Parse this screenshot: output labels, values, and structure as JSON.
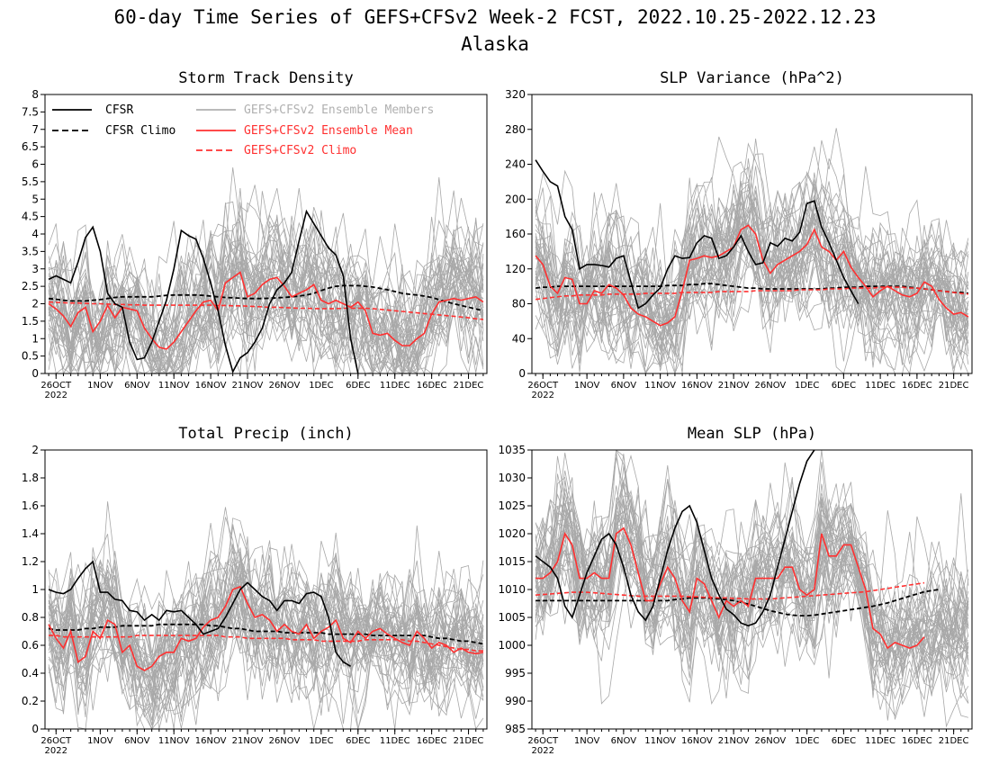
{
  "title": "60-day Time Series of GEFS+CFSv2 Week-2 FCST, 2022.10.25-2022.12.23",
  "subtitle": "Alaska",
  "x_tick_labels": [
    "26OCT",
    "1NOV",
    "6NOV",
    "11NOV",
    "16NOV",
    "21NOV",
    "26NOV",
    "1DEC",
    "6DEC",
    "11DEC",
    "16DEC",
    "21DEC"
  ],
  "x_tick_year": "2022",
  "legend": [
    {
      "label": "CFSR",
      "color": "#000000",
      "dash": "solid"
    },
    {
      "label": "CFSR Climo",
      "color": "#000000",
      "dash": "dashed"
    },
    {
      "label": "GEFS+CFSv2 Ensemble Members",
      "color": "#b0b0b0",
      "dash": "solid"
    },
    {
      "label": "GEFS+CFSv2 Ensemble Mean",
      "color": "#ff3030",
      "dash": "solid"
    },
    {
      "label": "GEFS+CFSv2 Climo",
      "color": "#ff3030",
      "dash": "dashed"
    }
  ],
  "colors": {
    "cfsr": "#000000",
    "members": "#a8a8a8",
    "mean": "#ff3030"
  },
  "chart_data": [
    {
      "type": "line",
      "title": "Storm Track Density",
      "ylim": [
        0,
        8
      ],
      "yticks": [
        0,
        0.5,
        1,
        1.5,
        2,
        2.5,
        3,
        3.5,
        4,
        4.5,
        5,
        5.5,
        6,
        6.5,
        7,
        7.5,
        8
      ],
      "ytick_labels": [
        "0",
        "0.5",
        "1",
        "1.5",
        "2",
        "2.5",
        "3",
        "3.5",
        "4",
        "4.5",
        "5",
        "5.5",
        "6",
        "6.5",
        "7",
        "7.5",
        "8"
      ],
      "series": [
        {
          "key": "cfsr",
          "values": [
            2.7,
            2.8,
            2.7,
            2.6,
            3.2,
            3.9,
            4.2,
            3.5,
            2.3,
            2.0,
            1.9,
            0.9,
            0.4,
            0.45,
            0.9,
            1.5,
            2.1,
            3.0,
            4.1,
            3.95,
            3.85,
            3.3,
            2.6,
            1.8,
            0.8,
            0.05,
            0.45,
            0.6,
            0.9,
            1.3,
            2.0,
            2.4,
            2.6,
            2.9,
            3.8,
            4.65,
            4.3,
            3.95,
            3.6,
            3.4,
            2.8,
            1.0,
            0.0
          ]
        },
        {
          "key": "cfsr_climo",
          "values": [
            2.15,
            2.13,
            2.1,
            2.08,
            2.08,
            2.08,
            2.1,
            2.12,
            2.15,
            2.18,
            2.2,
            2.2,
            2.2,
            2.2,
            2.2,
            2.22,
            2.24,
            2.25,
            2.25,
            2.25,
            2.25,
            2.24,
            2.22,
            2.2,
            2.18,
            2.17,
            2.16,
            2.15,
            2.15,
            2.15,
            2.16,
            2.17,
            2.18,
            2.2,
            2.22,
            2.25,
            2.3,
            2.38,
            2.45,
            2.5,
            2.52,
            2.52,
            2.52,
            2.5,
            2.48,
            2.44,
            2.4,
            2.35,
            2.3,
            2.27,
            2.25,
            2.22,
            2.18,
            2.12,
            2.06,
            2.0,
            1.95,
            1.9,
            1.85,
            1.8
          ]
        },
        {
          "key": "mean",
          "values": [
            2.0,
            1.85,
            1.65,
            1.35,
            1.75,
            1.9,
            1.2,
            1.5,
            1.95,
            1.6,
            1.9,
            1.85,
            1.8,
            1.3,
            1.0,
            0.75,
            0.7,
            0.9,
            1.2,
            1.5,
            1.8,
            2.05,
            2.1,
            1.8,
            2.6,
            2.75,
            2.9,
            2.2,
            2.3,
            2.55,
            2.7,
            2.75,
            2.5,
            2.2,
            2.3,
            2.4,
            2.55,
            2.1,
            2.0,
            2.1,
            2.0,
            1.9,
            2.05,
            1.8,
            1.15,
            1.1,
            1.15,
            0.95,
            0.8,
            0.8,
            1.0,
            1.15,
            1.7,
            2.05,
            2.1,
            2.15,
            2.1,
            2.15,
            2.2,
            2.05
          ]
        },
        {
          "key": "climo",
          "values": [
            2.05,
            2.04,
            2.03,
            2.02,
            2.02,
            2.01,
            2.0,
            2.0,
            1.99,
            1.98,
            1.98,
            1.97,
            1.97,
            1.96,
            1.96,
            1.96,
            1.96,
            1.96,
            1.96,
            1.96,
            1.96,
            1.96,
            1.96,
            1.95,
            1.95,
            1.94,
            1.94,
            1.93,
            1.92,
            1.91,
            1.9,
            1.9,
            1.89,
            1.88,
            1.87,
            1.87,
            1.86,
            1.86,
            1.86,
            1.86,
            1.87,
            1.87,
            1.87,
            1.87,
            1.86,
            1.84,
            1.82,
            1.8,
            1.78,
            1.76,
            1.74,
            1.72,
            1.7,
            1.68,
            1.66,
            1.64,
            1.62,
            1.6,
            1.57,
            1.55
          ]
        }
      ]
    },
    {
      "type": "line",
      "title": "SLP Variance (hPa^2)",
      "ylim": [
        0,
        320
      ],
      "yticks": [
        0,
        40,
        80,
        120,
        160,
        200,
        240,
        280,
        320
      ],
      "ytick_labels": [
        "0",
        "40",
        "80",
        "120",
        "160",
        "200",
        "240",
        "280",
        "320"
      ],
      "series": [
        {
          "key": "cfsr",
          "values": [
            245,
            232,
            220,
            215,
            180,
            165,
            120,
            125,
            125,
            124,
            122,
            132,
            135,
            105,
            75,
            80,
            90,
            98,
            120,
            135,
            132,
            133,
            150,
            158,
            155,
            132,
            135,
            145,
            158,
            140,
            125,
            127,
            150,
            146,
            155,
            152,
            162,
            195,
            198,
            168,
            150,
            130,
            110,
            95,
            80
          ]
        },
        {
          "key": "cfsr_climo",
          "values": [
            98,
            99,
            99,
            100,
            100,
            100,
            100,
            100,
            100,
            100,
            100,
            100,
            100,
            100,
            100,
            100,
            100,
            100,
            101,
            101,
            101,
            102,
            102,
            103,
            103,
            102,
            101,
            100,
            99,
            98,
            98,
            97,
            97,
            97,
            97,
            97,
            97,
            97,
            97,
            97,
            98,
            98,
            99,
            99,
            99,
            100,
            100,
            100,
            100,
            100,
            100,
            99,
            98,
            97,
            96,
            95,
            94,
            93,
            93,
            92
          ]
        },
        {
          "key": "mean",
          "values": [
            135,
            125,
            100,
            92,
            110,
            108,
            80,
            80,
            95,
            92,
            102,
            98,
            90,
            75,
            68,
            65,
            60,
            55,
            58,
            65,
            95,
            130,
            132,
            135,
            133,
            135,
            140,
            145,
            165,
            170,
            160,
            130,
            115,
            125,
            130,
            135,
            140,
            148,
            165,
            145,
            140,
            130,
            140,
            122,
            110,
            100,
            88,
            95,
            100,
            95,
            90,
            88,
            92,
            105,
            100,
            85,
            75,
            68,
            70,
            65
          ]
        },
        {
          "key": "climo",
          "values": [
            85,
            86,
            87,
            88,
            89,
            89,
            90,
            90,
            90,
            90,
            91,
            91,
            91,
            91,
            91,
            92,
            92,
            92,
            92,
            92,
            93,
            93,
            93,
            93,
            93,
            94,
            94,
            94,
            94,
            94,
            95,
            95,
            95,
            95,
            95,
            95,
            96,
            96,
            96,
            96,
            97,
            97,
            97,
            98,
            98,
            98,
            98,
            99,
            99,
            99,
            99,
            98,
            98,
            97,
            96,
            95,
            94,
            93,
            92,
            91
          ]
        }
      ]
    },
    {
      "type": "line",
      "title": "Total Precip (inch)",
      "ylim": [
        0,
        2
      ],
      "yticks": [
        0,
        0.2,
        0.4,
        0.6,
        0.8,
        1,
        1.2,
        1.4,
        1.6,
        1.8,
        2
      ],
      "ytick_labels": [
        "0",
        "0.2",
        "0.4",
        "0.6",
        "0.8",
        "1",
        "1.2",
        "1.4",
        "1.6",
        "1.8",
        "2"
      ],
      "series": [
        {
          "key": "cfsr",
          "values": [
            1.0,
            0.98,
            0.97,
            1.0,
            1.08,
            1.15,
            1.2,
            0.98,
            0.98,
            0.93,
            0.92,
            0.85,
            0.84,
            0.78,
            0.82,
            0.78,
            0.85,
            0.84,
            0.85,
            0.8,
            0.75,
            0.68,
            0.7,
            0.72,
            0.8,
            0.9,
            1.0,
            1.05,
            1.0,
            0.95,
            0.92,
            0.85,
            0.92,
            0.92,
            0.9,
            0.97,
            0.98,
            0.95,
            0.8,
            0.55,
            0.48,
            0.45
          ]
        },
        {
          "key": "cfsr_climo",
          "values": [
            0.72,
            0.71,
            0.71,
            0.71,
            0.71,
            0.72,
            0.72,
            0.73,
            0.73,
            0.73,
            0.74,
            0.74,
            0.74,
            0.74,
            0.74,
            0.75,
            0.75,
            0.75,
            0.75,
            0.75,
            0.75,
            0.75,
            0.74,
            0.74,
            0.73,
            0.72,
            0.72,
            0.71,
            0.7,
            0.7,
            0.7,
            0.7,
            0.69,
            0.69,
            0.69,
            0.69,
            0.69,
            0.69,
            0.68,
            0.68,
            0.68,
            0.68,
            0.68,
            0.68,
            0.67,
            0.67,
            0.67,
            0.67,
            0.67,
            0.67,
            0.67,
            0.67,
            0.66,
            0.65,
            0.65,
            0.64,
            0.63,
            0.63,
            0.62,
            0.61
          ]
        },
        {
          "key": "mean",
          "values": [
            0.75,
            0.65,
            0.58,
            0.7,
            0.48,
            0.52,
            0.7,
            0.65,
            0.78,
            0.75,
            0.55,
            0.6,
            0.45,
            0.42,
            0.45,
            0.52,
            0.55,
            0.55,
            0.65,
            0.63,
            0.65,
            0.73,
            0.78,
            0.8,
            0.88,
            1.0,
            1.02,
            0.9,
            0.8,
            0.82,
            0.78,
            0.7,
            0.75,
            0.7,
            0.68,
            0.75,
            0.65,
            0.7,
            0.73,
            0.78,
            0.65,
            0.62,
            0.7,
            0.65,
            0.7,
            0.72,
            0.68,
            0.65,
            0.62,
            0.6,
            0.7,
            0.65,
            0.58,
            0.62,
            0.6,
            0.55,
            0.58,
            0.55,
            0.54,
            0.55
          ]
        },
        {
          "key": "climo",
          "values": [
            0.67,
            0.67,
            0.66,
            0.66,
            0.66,
            0.66,
            0.66,
            0.66,
            0.66,
            0.66,
            0.66,
            0.66,
            0.67,
            0.67,
            0.67,
            0.67,
            0.67,
            0.67,
            0.67,
            0.67,
            0.67,
            0.67,
            0.67,
            0.67,
            0.66,
            0.66,
            0.66,
            0.65,
            0.65,
            0.65,
            0.65,
            0.65,
            0.65,
            0.64,
            0.64,
            0.64,
            0.64,
            0.63,
            0.63,
            0.63,
            0.63,
            0.63,
            0.63,
            0.64,
            0.64,
            0.64,
            0.64,
            0.64,
            0.64,
            0.63,
            0.63,
            0.62,
            0.61,
            0.6,
            0.59,
            0.58,
            0.57,
            0.57,
            0.56,
            0.56
          ]
        }
      ]
    },
    {
      "type": "line",
      "title": "Mean SLP (hPa)",
      "ylim": [
        985,
        1035
      ],
      "yticks": [
        985,
        990,
        995,
        1000,
        1005,
        1010,
        1015,
        1020,
        1025,
        1030,
        1035
      ],
      "ytick_labels": [
        "985",
        "990",
        "995",
        "1000",
        "1005",
        "1010",
        "1015",
        "1020",
        "1025",
        "1030",
        "1035"
      ],
      "series": [
        {
          "key": "cfsr",
          "values": [
            1016,
            1015,
            1014,
            1012,
            1007,
            1005,
            1009,
            1013,
            1016,
            1019,
            1020,
            1018,
            1014,
            1009,
            1006,
            1004.5,
            1007,
            1012,
            1017,
            1021,
            1024,
            1025,
            1022,
            1017,
            1012,
            1009,
            1006.5,
            1005.5,
            1004,
            1003.5,
            1004,
            1006,
            1009,
            1014,
            1019,
            1024,
            1029,
            1033,
            1036
          ]
        },
        {
          "key": "cfsr_climo",
          "values": [
            1008,
            1008,
            1008,
            1008,
            1008,
            1008,
            1008,
            1008,
            1008,
            1008,
            1008,
            1008,
            1008,
            1008,
            1008,
            1008,
            1008,
            1008,
            1008,
            1008.2,
            1008.3,
            1008.5,
            1008.5,
            1008.5,
            1008.4,
            1008.3,
            1008.2,
            1008,
            1007.7,
            1007.4,
            1007,
            1006.6,
            1006.2,
            1005.9,
            1005.6,
            1005.4,
            1005.3,
            1005.3,
            1005.4,
            1005.6,
            1005.8,
            1006,
            1006.2,
            1006.4,
            1006.6,
            1006.8,
            1007,
            1007.3,
            1007.6,
            1008,
            1008.4,
            1008.8,
            1009.2,
            1009.6,
            1009.8,
            1010
          ]
        },
        {
          "key": "mean",
          "values": [
            1012,
            1012,
            1013,
            1015,
            1020,
            1018,
            1012,
            1012,
            1013,
            1012,
            1012,
            1020,
            1021,
            1018,
            1013,
            1008,
            1008,
            1011,
            1014,
            1012,
            1008,
            1006,
            1012,
            1011,
            1008,
            1005,
            1008,
            1007,
            1008,
            1007,
            1012,
            1012,
            1012,
            1012,
            1014,
            1014,
            1010,
            1009,
            1010,
            1020,
            1016,
            1016,
            1018,
            1018,
            1014,
            1010,
            1003,
            1002,
            999.5,
            1000.5,
            1000,
            999.5,
            1000,
            1001.5
          ]
        },
        {
          "key": "climo",
          "values": [
            1009,
            1009.1,
            1009.2,
            1009.3,
            1009.4,
            1009.5,
            1009.5,
            1009.5,
            1009.4,
            1009.3,
            1009.2,
            1009.1,
            1009,
            1008.9,
            1008.8,
            1008.8,
            1008.8,
            1008.8,
            1008.8,
            1008.8,
            1008.8,
            1008.7,
            1008.7,
            1008.6,
            1008.6,
            1008.5,
            1008.5,
            1008.4,
            1008.4,
            1008.3,
            1008.3,
            1008.3,
            1008.3,
            1008.4,
            1008.5,
            1008.6,
            1008.7,
            1008.8,
            1008.9,
            1009,
            1009.1,
            1009.2,
            1009.3,
            1009.4,
            1009.5,
            1009.6,
            1009.8,
            1010,
            1010.2,
            1010.4,
            1010.6,
            1010.8,
            1011,
            1011.2
          ]
        }
      ]
    }
  ]
}
